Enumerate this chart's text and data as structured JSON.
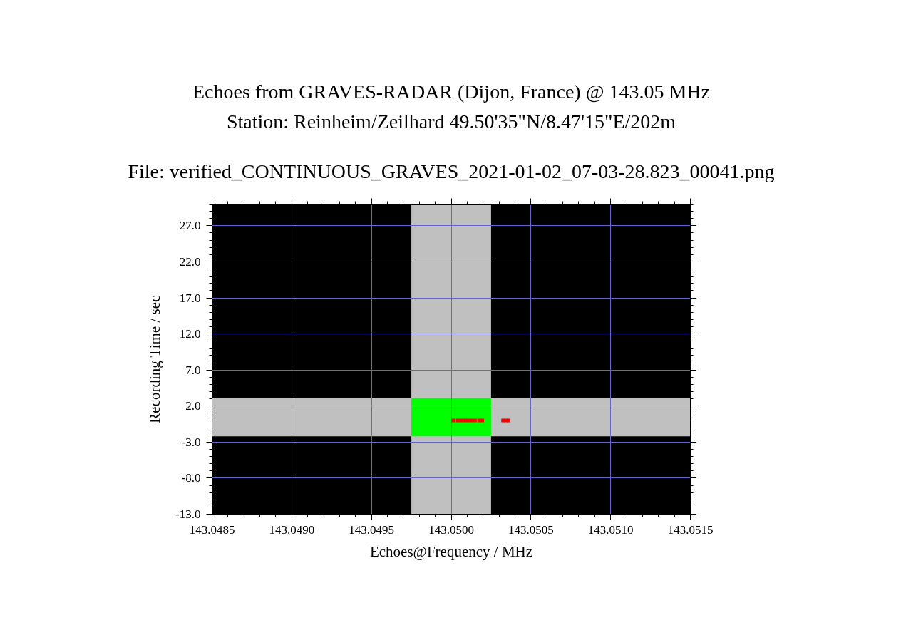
{
  "chart_data": {
    "type": "scatter",
    "title": "Echoes from GRAVES-RADAR (Dijon, France) @ 143.05 MHz",
    "subtitle": "Station: Reinheim/Zeilhard 49.50'35\"N/8.47'15\"E/202m",
    "annotations": [
      "File: verified_CONTINUOUS_GRAVES_2021-01-02_07-03-28.823_00041.png"
    ],
    "xlabel": "Echoes@Frequency / MHz",
    "ylabel": "Recording Time / sec",
    "xlim": [
      143.0485,
      143.0515
    ],
    "ylim": [
      -13,
      30
    ],
    "xticks": [
      143.0485,
      {
        "value": 143.049,
        "label": "143.0490"
      },
      143.0495,
      {
        "value": 143.05,
        "label": "143.0500"
      },
      143.0505,
      {
        "value": 143.051,
        "label": "143.0510"
      },
      143.0515
    ],
    "yticks": [
      {
        "value": -13,
        "label": "-13.0"
      },
      {
        "value": -8,
        "label": "-8.0"
      },
      {
        "value": -3,
        "label": "-3.0"
      },
      {
        "value": 2,
        "label": "2.0"
      },
      {
        "value": 7,
        "label": "7.0"
      },
      {
        "value": 12,
        "label": "12.0"
      },
      {
        "value": 17,
        "label": "17.0"
      },
      {
        "value": 22,
        "label": "22.0"
      },
      {
        "value": 27,
        "label": "27.0"
      }
    ],
    "grid": true,
    "marker": "square",
    "bands": [
      {
        "axis": "x",
        "from": 143.04975,
        "to": 143.05025,
        "color": "#c0c0c0"
      },
      {
        "axis": "y",
        "from": -2.2,
        "to": 3.1,
        "color": "#c0c0c0"
      }
    ],
    "series": [
      {
        "type": "line",
        "color": "#00ff00",
        "x": [
          143.04975,
          143.05025
        ],
        "values": [
          null,
          null
        ],
        "lower": [
          -2.2,
          -2.2
        ],
        "upper": [
          3.1,
          3.1
        ]
      },
      {
        "color": "#ff0000",
        "x": [
          143.050014,
          143.050041,
          143.050062,
          143.050084,
          143.050105,
          143.050127,
          143.050149,
          143.050175,
          143.050195,
          143.050325,
          143.050342,
          143.05036
        ],
        "values": [
          0,
          0,
          0,
          0,
          0,
          0,
          0,
          0,
          0,
          0,
          0,
          0
        ]
      }
    ]
  }
}
